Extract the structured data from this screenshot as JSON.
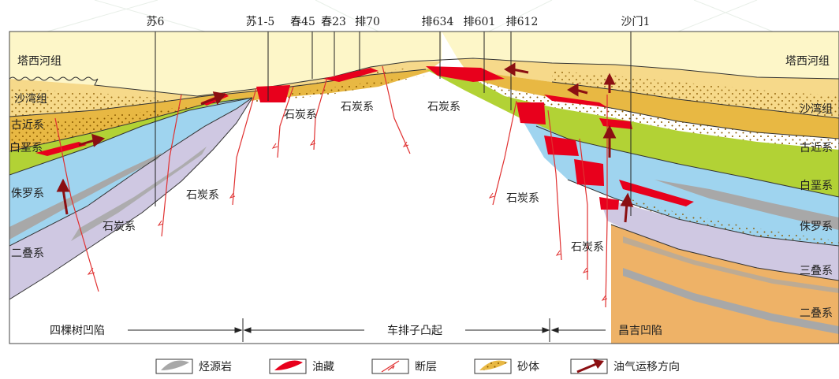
{
  "wells": [
    "苏6",
    "苏1-5",
    "春45",
    "春23",
    "排70",
    "排634",
    "排601",
    "排612",
    "沙门1"
  ],
  "left_labels": [
    "塔西河组",
    "沙湾组",
    "古近系",
    "白垩系",
    "侏罗系",
    "二叠系"
  ],
  "right_labels": [
    "塔西河组",
    "沙湾组",
    "古近系",
    "白垩系",
    "侏罗系",
    "三叠系",
    "二叠系"
  ],
  "carboniferous_label": "石炭系",
  "regions": [
    "四棵树凹陷",
    "车排子凸起",
    "昌吉凹陷"
  ],
  "legend": [
    {
      "icon": "source-rock-icon",
      "label": "烃源岩"
    },
    {
      "icon": "oil-reservoir-icon",
      "label": "油藏"
    },
    {
      "icon": "fault-icon",
      "label": "断层"
    },
    {
      "icon": "sand-body-icon",
      "label": "砂体"
    },
    {
      "icon": "migration-arrow-icon",
      "label": "油气运移方向"
    }
  ],
  "colors": {
    "tashihe": "#fdf6c8",
    "shawan": "#f6d98a",
    "paleogene": "#e8b843",
    "cretaceous": "#b2d235",
    "jurassic": "#9fd4ef",
    "triassic": "#eeb267",
    "permian": "#cfc8e2",
    "source_rock": "#a8a8a8",
    "oil": "#e8001c",
    "fault": "#e03030",
    "arrow": "#8b0f12",
    "border": "#333333"
  }
}
